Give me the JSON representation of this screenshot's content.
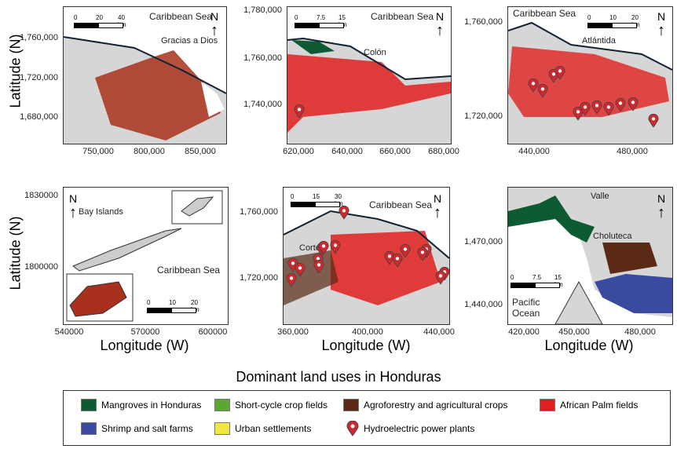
{
  "figure": {
    "title": "Dominant land uses in Honduras",
    "y_axis_label": "Latitude (N)",
    "x_axis_label": "Longitude (W)",
    "north_label": "N",
    "panels": [
      {
        "sea": "Caribbean Sea",
        "region": "Gracias a Dios",
        "scale": [
          "0",
          "20",
          "40 km"
        ],
        "y_ticks": [
          "1,760,000",
          "1,720,000",
          "1,680,000"
        ],
        "x_ticks": [
          "750,000",
          "800,000",
          "850,000"
        ]
      },
      {
        "sea": "Caribbean Sea",
        "region": "Colón",
        "scale": [
          "0",
          "7.5",
          "15 km"
        ],
        "y_ticks": [
          "1,780,000",
          "1,760,000",
          "1,740,000"
        ],
        "x_ticks": [
          "620,000",
          "640,000",
          "660,000",
          "680,000"
        ]
      },
      {
        "sea": "Caribbean Sea",
        "region": "Atlántida",
        "scale": [
          "0",
          "10",
          "20 km"
        ],
        "y_ticks": [
          "1,760,000",
          "1,720,000"
        ],
        "x_ticks": [
          "440,000",
          "480,000"
        ]
      },
      {
        "sea": "Caribbean Sea",
        "region": "Bay Islands",
        "scale": [
          "0",
          "10",
          "20 km"
        ],
        "y_ticks": [
          "1830000",
          "1800000"
        ],
        "x_ticks": [
          "540000",
          "570000",
          "600000"
        ]
      },
      {
        "sea": "Caribbean Sea",
        "region": "Cortés",
        "scale": [
          "0",
          "15",
          "30 km"
        ],
        "y_ticks": [
          "1,760,000",
          "1,720,000"
        ],
        "x_ticks": [
          "360,000",
          "400,000",
          "440,000"
        ]
      },
      {
        "sea": "Pacific Ocean",
        "region": "Choluteca",
        "region2": "Valle",
        "scale": [
          "0",
          "7.5",
          "15 km"
        ],
        "y_ticks": [
          "1,470,000",
          "1,440,000"
        ],
        "x_ticks": [
          "420,000",
          "450,000",
          "480,000"
        ]
      }
    ]
  },
  "legend": [
    {
      "label": "Mangroves in Honduras",
      "color": "#0e5a32"
    },
    {
      "label": "Short-cycle crop fields",
      "color": "#5aa832"
    },
    {
      "label": "Agroforestry and agricultural crops",
      "color": "#5a2a14"
    },
    {
      "label": "African Palm fields",
      "color": "#e02020"
    },
    {
      "label": "Shrimp and salt farms",
      "color": "#3a4aa0"
    },
    {
      "label": "Urban settlements",
      "color": "#f2e640"
    },
    {
      "label": "Hydroelectric power plants",
      "icon": "map-pin-icon",
      "color": "#d0282e"
    }
  ],
  "colors": {
    "land": "#d6d6d6",
    "water": "#ffffff",
    "agroforestry_red": "#a8301c"
  }
}
